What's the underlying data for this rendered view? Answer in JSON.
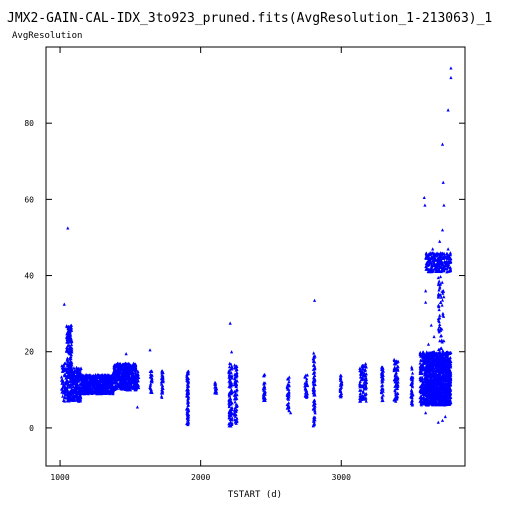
{
  "colors": {
    "points": "#0000ff",
    "axis": "#000000",
    "background": "#ffffff"
  },
  "chart_data": {
    "type": "scatter",
    "title": "JMX2-GAIN-CAL-IDX_3to923_pruned.fits(AvgResolution_1-213063)_1",
    "xlabel": "TSTART (d)",
    "ylabel": "AvgResolution",
    "xlim": [
      900,
      3880
    ],
    "ylim": [
      -10,
      100
    ],
    "xticks": [
      1000,
      2000,
      3000
    ],
    "yticks": [
      0,
      20,
      40,
      60,
      80
    ],
    "grid": false,
    "marker": "triangle",
    "clusters": [
      {
        "x": [
          1010,
          1045
        ],
        "y": [
          7,
          17
        ],
        "n": 60
      },
      {
        "x": [
          1045,
          1085
        ],
        "y": [
          7,
          27
        ],
        "n": 220
      },
      {
        "x": [
          1085,
          1150
        ],
        "y": [
          7,
          16
        ],
        "n": 200
      },
      {
        "x": [
          1150,
          1380
        ],
        "y": [
          9,
          14
        ],
        "n": 700
      },
      {
        "x": [
          1380,
          1545
        ],
        "y": [
          10,
          17
        ],
        "n": 500
      },
      {
        "x": [
          1545,
          1560
        ],
        "y": [
          10,
          15
        ],
        "n": 20
      },
      {
        "x": [
          1640,
          1655
        ],
        "y": [
          9,
          15
        ],
        "n": 30
      },
      {
        "x": [
          1720,
          1735
        ],
        "y": [
          8,
          15
        ],
        "n": 30
      },
      {
        "x": [
          1900,
          1915
        ],
        "y": [
          0.5,
          15
        ],
        "n": 80
      },
      {
        "x": [
          2100,
          2115
        ],
        "y": [
          9,
          12
        ],
        "n": 20
      },
      {
        "x": [
          2200,
          2225
        ],
        "y": [
          0.5,
          17
        ],
        "n": 100
      },
      {
        "x": [
          2240,
          2260
        ],
        "y": [
          1,
          17
        ],
        "n": 80
      },
      {
        "x": [
          2445,
          2460
        ],
        "y": [
          7,
          14
        ],
        "n": 30
      },
      {
        "x": [
          2615,
          2630
        ],
        "y": [
          4,
          14
        ],
        "n": 40
      },
      {
        "x": [
          2740,
          2760
        ],
        "y": [
          8,
          14
        ],
        "n": 30
      },
      {
        "x": [
          2800,
          2815
        ],
        "y": [
          0.5,
          20
        ],
        "n": 80
      },
      {
        "x": [
          2990,
          3005
        ],
        "y": [
          8,
          14
        ],
        "n": 30
      },
      {
        "x": [
          3130,
          3180
        ],
        "y": [
          7,
          17
        ],
        "n": 100
      },
      {
        "x": [
          3285,
          3300
        ],
        "y": [
          7,
          16
        ],
        "n": 40
      },
      {
        "x": [
          3375,
          3405
        ],
        "y": [
          7,
          18
        ],
        "n": 70
      },
      {
        "x": [
          3495,
          3510
        ],
        "y": [
          6,
          16
        ],
        "n": 40
      },
      {
        "x": [
          3560,
          3600
        ],
        "y": [
          6,
          20
        ],
        "n": 160
      },
      {
        "x": [
          3600,
          3780
        ],
        "y": [
          6,
          20
        ],
        "n": 1300
      },
      {
        "x": [
          3600,
          3780
        ],
        "y": [
          41,
          46
        ],
        "n": 260
      },
      {
        "x": [
          3690,
          3730
        ],
        "y": [
          20,
          40
        ],
        "n": 60
      }
    ],
    "outliers": [
      {
        "x": 1030,
        "y": 32.5
      },
      {
        "x": 1055,
        "y": 52.5
      },
      {
        "x": 1470,
        "y": 19.5
      },
      {
        "x": 1640,
        "y": 20.5
      },
      {
        "x": 1550,
        "y": 5.5
      },
      {
        "x": 2210,
        "y": 27.5
      },
      {
        "x": 2220,
        "y": 20
      },
      {
        "x": 2810,
        "y": 33.5
      },
      {
        "x": 2640,
        "y": 4
      },
      {
        "x": 3590,
        "y": 60.5
      },
      {
        "x": 3595,
        "y": 58.5
      },
      {
        "x": 3600,
        "y": 36
      },
      {
        "x": 3600,
        "y": 33
      },
      {
        "x": 3720,
        "y": 74.5
      },
      {
        "x": 3725,
        "y": 64.5
      },
      {
        "x": 3730,
        "y": 58.5
      },
      {
        "x": 3760,
        "y": 83.5
      },
      {
        "x": 3780,
        "y": 94.5
      },
      {
        "x": 3780,
        "y": 92
      },
      {
        "x": 3720,
        "y": 52
      },
      {
        "x": 3700,
        "y": 49
      },
      {
        "x": 3650,
        "y": 47
      },
      {
        "x": 3760,
        "y": 47
      },
      {
        "x": 3640,
        "y": 27
      },
      {
        "x": 3660,
        "y": 24
      },
      {
        "x": 3720,
        "y": 2
      },
      {
        "x": 3690,
        "y": 1.5
      },
      {
        "x": 3600,
        "y": 4
      },
      {
        "x": 3740,
        "y": 3
      },
      {
        "x": 3620,
        "y": 22
      }
    ]
  }
}
